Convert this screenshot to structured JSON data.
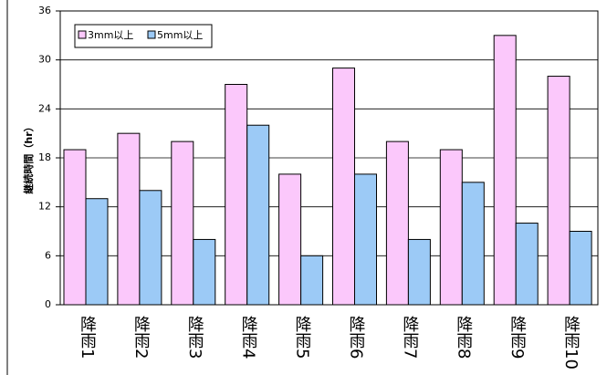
{
  "chart_data": {
    "type": "bar",
    "categories": [
      "降雨1",
      "降雨2",
      "降雨3",
      "降雨4",
      "降雨5",
      "降雨6",
      "降雨7",
      "降雨8",
      "降雨9",
      "降雨10"
    ],
    "y_label": "継続時間（hr）",
    "series": [
      {
        "name": "3mm以上",
        "color": "#fbc8fb",
        "values": [
          19,
          21,
          20,
          27,
          16,
          29,
          20,
          19,
          33,
          28
        ]
      },
      {
        "name": "5mm以上",
        "color": "#9ccaf6",
        "values": [
          13,
          14,
          8,
          22,
          6,
          16,
          8,
          15,
          10,
          9
        ]
      }
    ],
    "ylim": [
      0,
      36
    ],
    "yticks": [
      0,
      6,
      12,
      18,
      24,
      30,
      36
    ],
    "grid": true,
    "legend": "top-left"
  }
}
